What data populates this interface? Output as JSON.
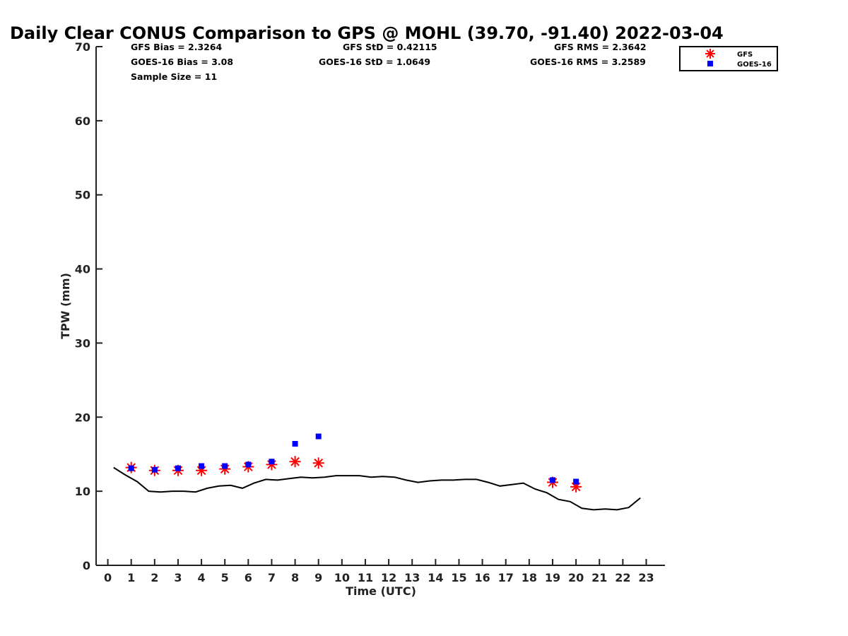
{
  "chart_data": {
    "type": "scatter",
    "title": "Daily Clear CONUS Comparison to GPS @ MOHL (39.70, -91.40) 2022-03-04",
    "xlabel": "Time (UTC)",
    "ylabel": "TPW (mm)",
    "xlim": [
      -0.5,
      23.8
    ],
    "ylim": [
      0,
      70
    ],
    "xticks": [
      0,
      1,
      2,
      3,
      4,
      5,
      6,
      7,
      8,
      9,
      10,
      11,
      12,
      13,
      14,
      15,
      16,
      17,
      18,
      19,
      20,
      21,
      22,
      23
    ],
    "yticks": [
      0,
      10,
      20,
      30,
      40,
      50,
      60,
      70
    ],
    "grid": false,
    "legend_position": "top-right",
    "stats": {
      "gfs_bias": "GFS Bias = 2.3264",
      "goes_bias": "GOES-16 Bias = 3.08",
      "sample_size": "Sample Size = 11",
      "gfs_std": "GFS StD = 0.42115",
      "goes_std": "GOES-16 StD = 1.0649",
      "gfs_rms": "GFS RMS = 2.3642",
      "goes_rms": "GOES-16 RMS = 3.2589"
    },
    "series": [
      {
        "name": "GFS",
        "marker": "asterisk",
        "color": "#ff0000",
        "points": [
          [
            1,
            13.2
          ],
          [
            2,
            12.8
          ],
          [
            3,
            12.8
          ],
          [
            4,
            12.8
          ],
          [
            5,
            13.0
          ],
          [
            6,
            13.3
          ],
          [
            7,
            13.6
          ],
          [
            8,
            14.0
          ],
          [
            9,
            13.8
          ],
          [
            19,
            11.2
          ],
          [
            20,
            10.6
          ]
        ]
      },
      {
        "name": "GOES-16",
        "marker": "square",
        "color": "#0000ff",
        "points": [
          [
            1,
            13.1
          ],
          [
            2,
            12.9
          ],
          [
            3,
            13.1
          ],
          [
            4,
            13.4
          ],
          [
            5,
            13.4
          ],
          [
            6,
            13.6
          ],
          [
            7,
            14.0
          ],
          [
            8,
            16.4
          ],
          [
            9,
            17.4
          ],
          [
            19,
            11.5
          ],
          [
            20,
            11.3
          ]
        ]
      },
      {
        "name": "",
        "marker": "line",
        "color": "#000000",
        "points": [
          [
            0.25,
            13.2
          ],
          [
            0.75,
            12.2
          ],
          [
            1.25,
            11.3
          ],
          [
            1.75,
            10.0
          ],
          [
            2.25,
            9.9
          ],
          [
            2.75,
            10.0
          ],
          [
            3.25,
            10.0
          ],
          [
            3.75,
            9.9
          ],
          [
            4.25,
            10.4
          ],
          [
            4.75,
            10.7
          ],
          [
            5.25,
            10.8
          ],
          [
            5.75,
            10.4
          ],
          [
            6.25,
            11.1
          ],
          [
            6.75,
            11.6
          ],
          [
            7.25,
            11.5
          ],
          [
            7.75,
            11.7
          ],
          [
            8.25,
            11.9
          ],
          [
            8.75,
            11.8
          ],
          [
            9.25,
            11.9
          ],
          [
            9.75,
            12.1
          ],
          [
            10.25,
            12.1
          ],
          [
            10.75,
            12.1
          ],
          [
            11.25,
            11.9
          ],
          [
            11.75,
            12.0
          ],
          [
            12.25,
            11.9
          ],
          [
            12.75,
            11.5
          ],
          [
            13.25,
            11.2
          ],
          [
            13.75,
            11.4
          ],
          [
            14.25,
            11.5
          ],
          [
            14.75,
            11.5
          ],
          [
            15.25,
            11.6
          ],
          [
            15.75,
            11.6
          ],
          [
            16.25,
            11.2
          ],
          [
            16.75,
            10.7
          ],
          [
            17.25,
            10.9
          ],
          [
            17.75,
            11.1
          ],
          [
            18.25,
            10.3
          ],
          [
            18.75,
            9.8
          ],
          [
            19.25,
            8.9
          ],
          [
            19.75,
            8.6
          ],
          [
            20.25,
            7.7
          ],
          [
            20.75,
            7.5
          ],
          [
            21.25,
            7.6
          ],
          [
            21.75,
            7.5
          ],
          [
            22.25,
            7.8
          ],
          [
            22.75,
            9.1
          ]
        ]
      }
    ]
  }
}
